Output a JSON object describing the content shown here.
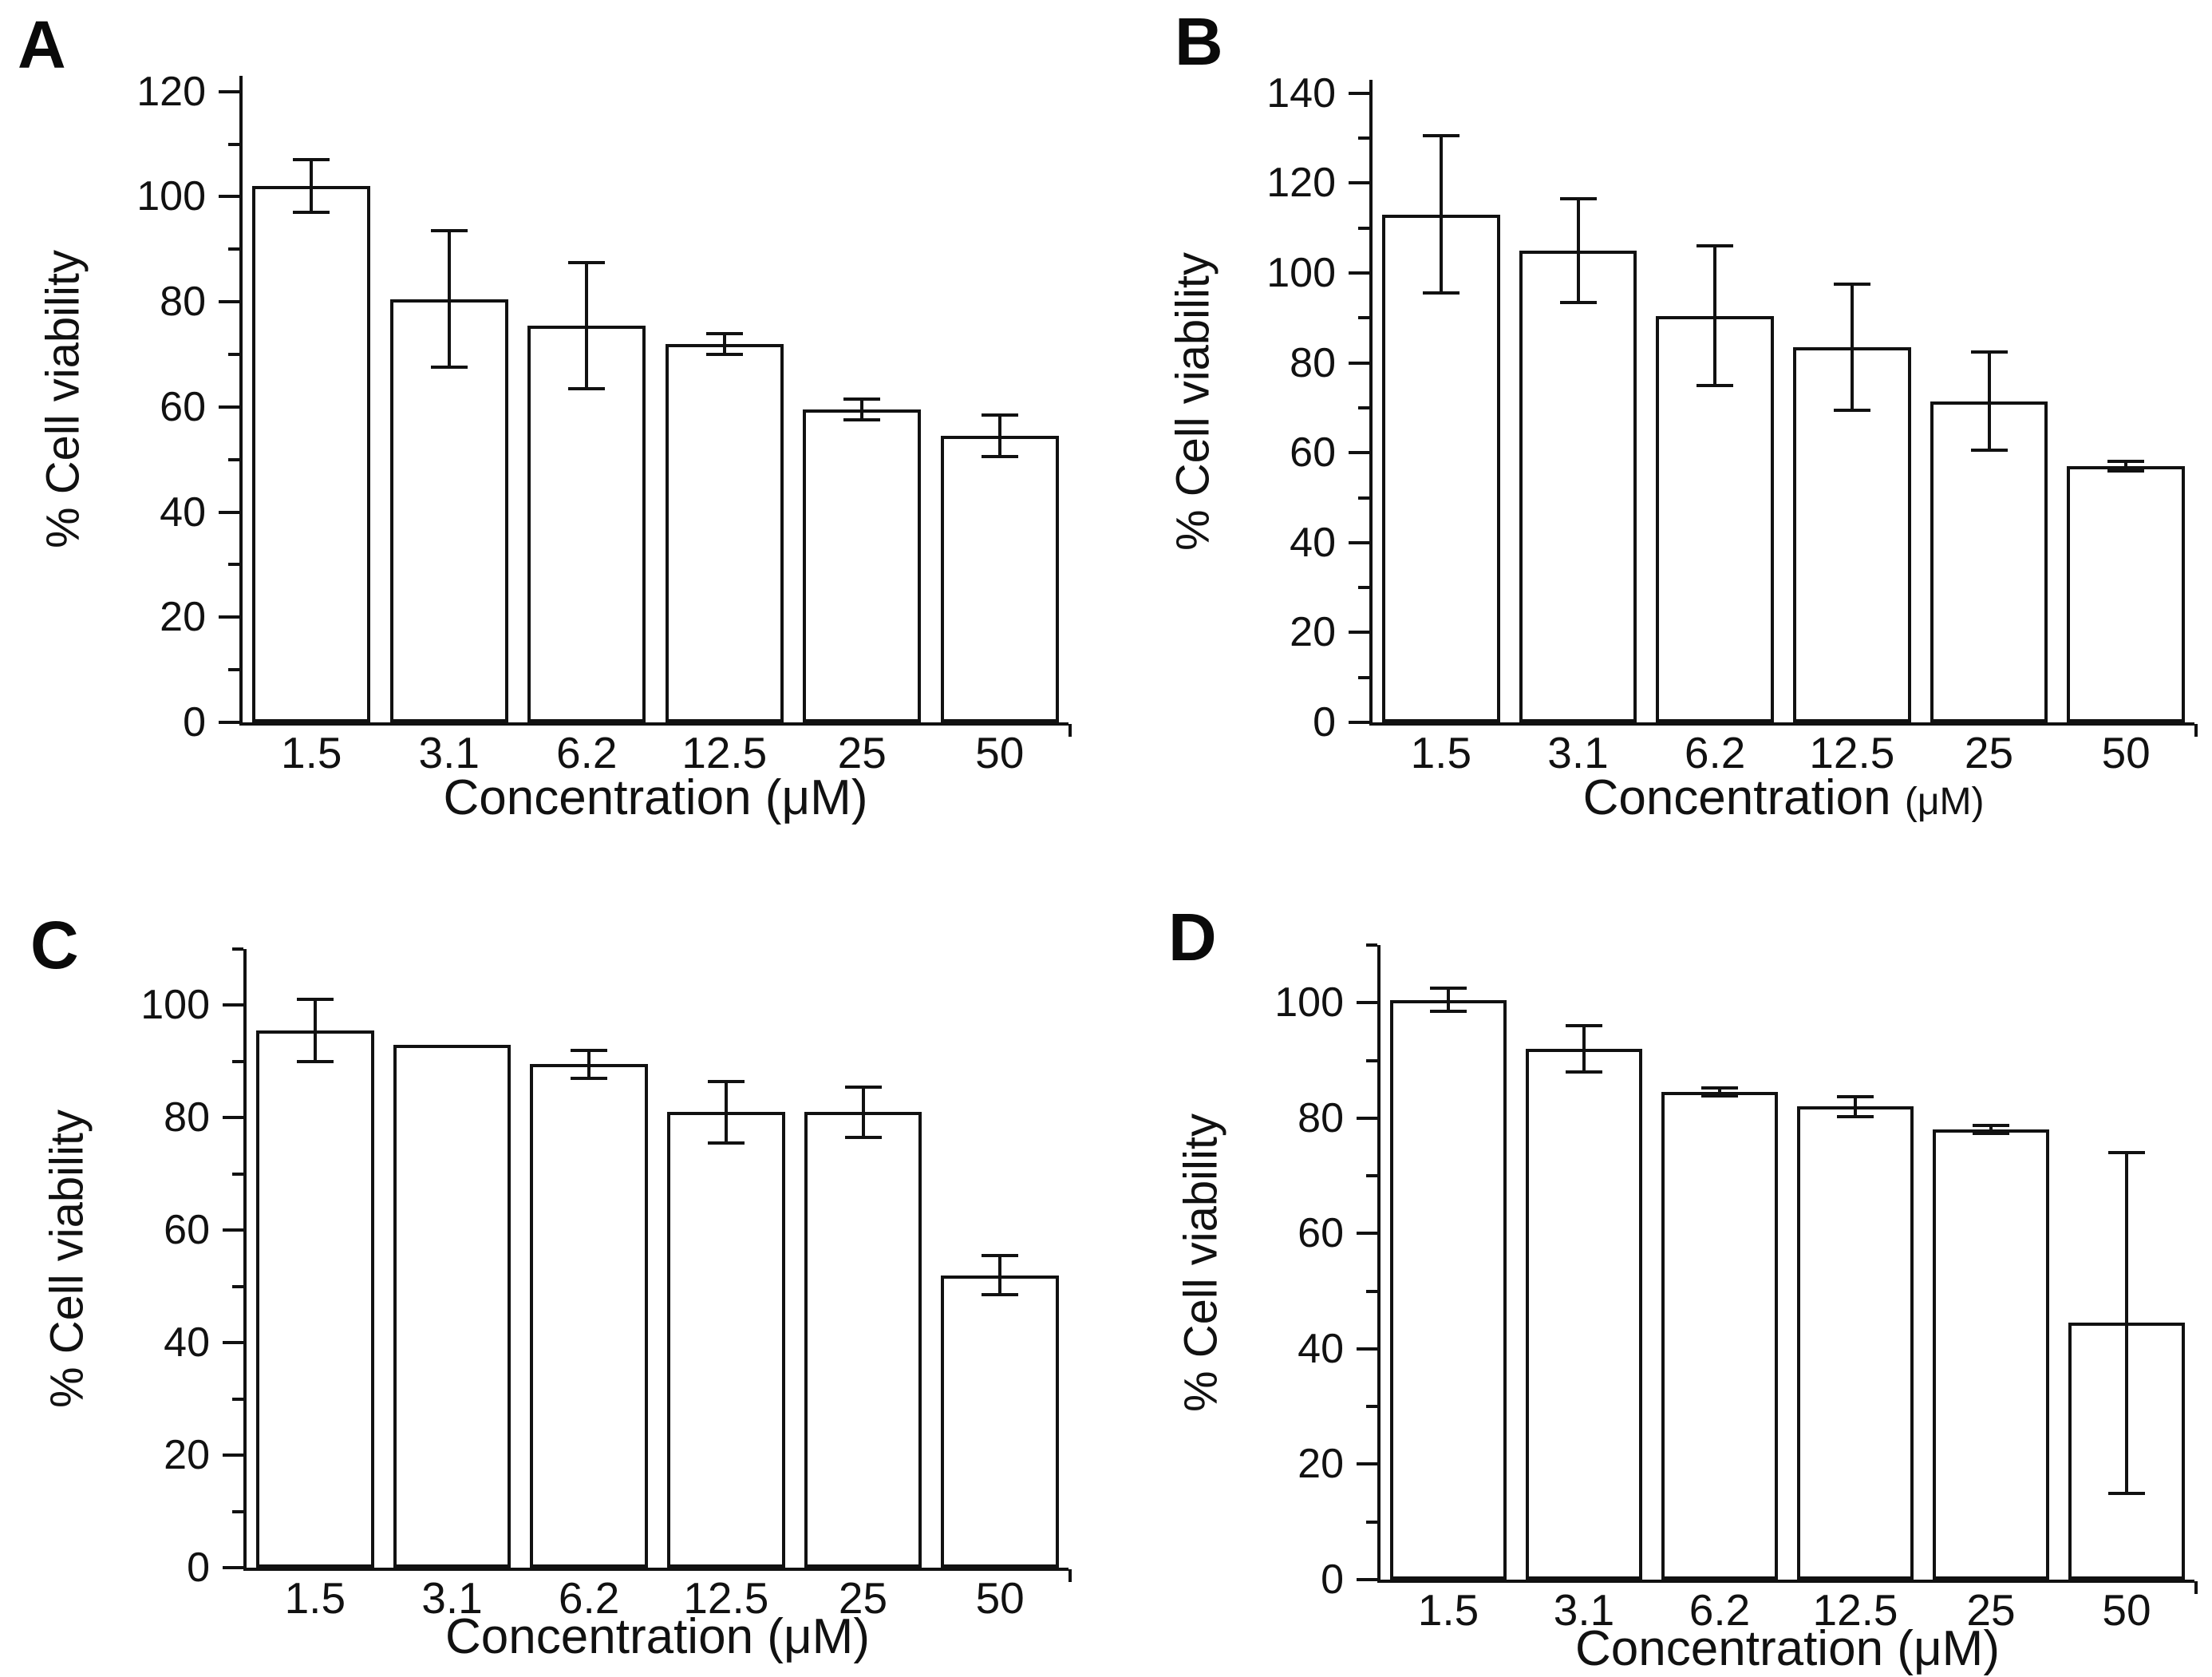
{
  "figure": {
    "description": "Four-panel bar figure of % cell viability vs concentration",
    "panel_labels": [
      "A",
      "B",
      "C",
      "D"
    ]
  },
  "chart_data": [
    {
      "type": "bar",
      "panel": "A",
      "title": "",
      "categories": [
        "1.5",
        "3.1",
        "6.2",
        "12.5",
        "25",
        "50"
      ],
      "values": [
        102,
        80.5,
        75.5,
        72,
        59.5,
        54.5
      ],
      "errors": [
        5,
        13,
        12,
        2,
        2,
        4
      ],
      "xlabel": "Concentration (μM)",
      "xlabel_main": "Concentration",
      "xlabel_unit": "(μM)",
      "ylabel": "% Cell viability",
      "ylim": [
        0,
        123
      ],
      "ytick_step": 20,
      "yminor_step": 10,
      "ytick_label_max": 120,
      "grid": false,
      "legend": "none",
      "bar_fill": "#ffffff",
      "bar_stroke": "#111111"
    },
    {
      "type": "bar",
      "panel": "B",
      "title": "",
      "categories": [
        "1.5",
        "3.1",
        "6.2",
        "12.5",
        "25",
        "50"
      ],
      "values": [
        113,
        105,
        90.5,
        83.5,
        71.5,
        57
      ],
      "errors": [
        17.5,
        11.5,
        15.5,
        14,
        11,
        1
      ],
      "xlabel": "Concentration (μM)",
      "xlabel_main": "Concentration",
      "xlabel_unit": "(μM)",
      "ylabel": "% Cell viability",
      "ylim": [
        0,
        143
      ],
      "ytick_step": 20,
      "yminor_step": 10,
      "ytick_label_max": 140,
      "grid": false,
      "legend": "none",
      "bar_fill": "#ffffff",
      "bar_stroke": "#111111"
    },
    {
      "type": "bar",
      "panel": "C",
      "title": "",
      "categories": [
        "1.5",
        "3.1",
        "6.2",
        "12.5",
        "25",
        "50"
      ],
      "values": [
        95.5,
        93,
        89.5,
        81,
        81,
        52
      ],
      "errors": [
        5.5,
        0,
        2.5,
        5.5,
        4.5,
        3.5
      ],
      "xlabel": "Concentration (μM)",
      "xlabel_main": "Concentration",
      "xlabel_unit": "(μM)",
      "ylabel": "% Cell viability",
      "ylim": [
        0,
        110
      ],
      "ytick_step": 20,
      "yminor_step": 10,
      "ytick_label_max": 100,
      "grid": false,
      "legend": "none",
      "bar_fill": "#ffffff",
      "bar_stroke": "#111111"
    },
    {
      "type": "bar",
      "panel": "D",
      "title": "",
      "categories": [
        "1.5",
        "3.1",
        "6.2",
        "12.5",
        "25",
        "50"
      ],
      "values": [
        100.5,
        92,
        84.5,
        82,
        78,
        44.5
      ],
      "errors": [
        2,
        4,
        0.7,
        1.7,
        0.7,
        29.5
      ],
      "xlabel": "Concentration (μM)",
      "xlabel_main": "Concentration",
      "xlabel_unit": "(μM)",
      "ylabel": "% Cell viability",
      "ylim": [
        0,
        110
      ],
      "ytick_step": 20,
      "yminor_step": 10,
      "ytick_label_max": 100,
      "grid": false,
      "legend": "none",
      "bar_fill": "#ffffff",
      "bar_stroke": "#111111"
    }
  ]
}
